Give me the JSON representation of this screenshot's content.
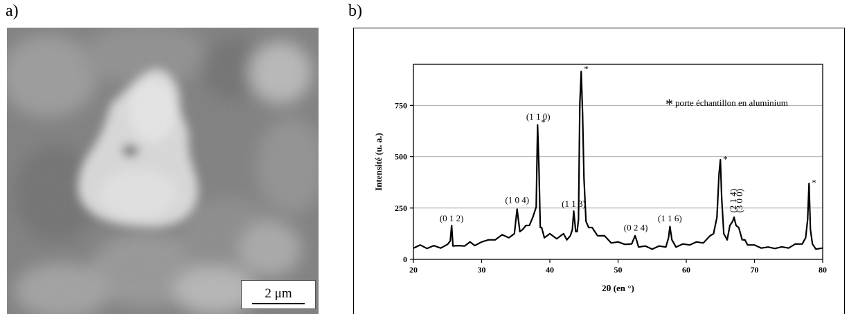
{
  "panels": {
    "a_label": "a)",
    "b_label": "b)"
  },
  "sem_image": {
    "scale_bar_label": "2 μm"
  },
  "chart_data": {
    "type": "line",
    "xlabel": "2θ (en °)",
    "ylabel": "Intensité (u. a.)",
    "xlim": [
      20,
      80
    ],
    "ylim": [
      0,
      950
    ],
    "x_ticks": [
      20,
      30,
      40,
      50,
      60,
      70,
      80
    ],
    "y_ticks": [
      0,
      250,
      500,
      750
    ],
    "grid": "horizontal",
    "legend_note": "porte échantillon en aluminium",
    "legend_symbol": "*",
    "series": [
      {
        "x": [
          20,
          21,
          22,
          23,
          24,
          25,
          25.4,
          25.6,
          25.8,
          26.5,
          27.5,
          28.3,
          29,
          30,
          30.5,
          31,
          32,
          33,
          34,
          34.8,
          35.2,
          35.6,
          36,
          36.5,
          37,
          37.5,
          37.8,
          38,
          38.2,
          38.4,
          38.6,
          38.8,
          39.2,
          40,
          41,
          42,
          42.5,
          43,
          43.3,
          43.5,
          43.8,
          44,
          44.2,
          44.4,
          44.6,
          44.8,
          45,
          45.3,
          45.7,
          46.2,
          47,
          48,
          49,
          50,
          51,
          52,
          52.5,
          52.7,
          53,
          54,
          55,
          56,
          57,
          57.4,
          57.6,
          57.9,
          58.5,
          59.5,
          60.5,
          61.5,
          62.5,
          63.5,
          64,
          64.5,
          64.8,
          65,
          65.2,
          65.5,
          66,
          66.4,
          66.8,
          67,
          67.3,
          67.7,
          68.2,
          68.6,
          69,
          70,
          71,
          72,
          73,
          74,
          75,
          76,
          77,
          77.5,
          77.8,
          78,
          78.2,
          78.5,
          79,
          80
        ],
        "y": [
          60,
          65,
          58,
          62,
          60,
          68,
          95,
          160,
          70,
          62,
          70,
          80,
          72,
          80,
          95,
          90,
          100,
          115,
          110,
          120,
          250,
          130,
          150,
          160,
          170,
          200,
          240,
          250,
          660,
          450,
          160,
          150,
          110,
          120,
          105,
          120,
          100,
          110,
          150,
          230,
          140,
          130,
          200,
          750,
          920,
          700,
          400,
          180,
          160,
          150,
          120,
          110,
          85,
          80,
          78,
          70,
          120,
          90,
          65,
          60,
          55,
          60,
          65,
          100,
          165,
          90,
          65,
          70,
          75,
          80,
          85,
          110,
          130,
          200,
          420,
          480,
          300,
          120,
          100,
          160,
          190,
          200,
          170,
          150,
          100,
          90,
          75,
          65,
          60,
          55,
          58,
          56,
          60,
          70,
          80,
          100,
          200,
          365,
          150,
          70,
          55,
          50
        ]
      }
    ],
    "annotations": [
      {
        "text": "(0 1 2)",
        "x": 25.6,
        "y": 165
      },
      {
        "text": "(1 0 4)",
        "x": 35.2,
        "y": 255
      },
      {
        "text": "(1 1 0)",
        "x": 38.3,
        "y": 660
      },
      {
        "text": "(1 1 3)",
        "x": 43.5,
        "y": 235
      },
      {
        "text": "(0 2 4)",
        "x": 52.6,
        "y": 120
      },
      {
        "text": "(1 1 6)",
        "x": 57.6,
        "y": 165
      },
      {
        "text": "(2 1 4)",
        "x": 66.9,
        "y": 200
      },
      {
        "text": "(3 0 0)",
        "x": 67.4,
        "y": 200
      }
    ],
    "star_peaks": [
      {
        "text": "*",
        "x": 38.3,
        "y": 660
      },
      {
        "text": "*",
        "x": 44.6,
        "y": 920
      },
      {
        "text": "*",
        "x": 65.0,
        "y": 480
      },
      {
        "text": "*",
        "x": 78.0,
        "y": 365
      }
    ]
  }
}
